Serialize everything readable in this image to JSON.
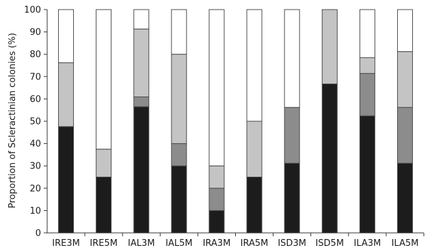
{
  "chart_data": {
    "type": "bar",
    "stacked": true,
    "title": "",
    "xlabel": "",
    "ylabel": "Proportion of Scleractinian colonies (%)",
    "ylim": [
      0,
      100
    ],
    "yticks": [
      0,
      10,
      20,
      30,
      40,
      50,
      60,
      70,
      80,
      90,
      100
    ],
    "grid": false,
    "legend": "none",
    "categories": [
      "IRE3M",
      "IRE5M",
      "IAL3M",
      "IAL5M",
      "IRA3M",
      "IRA5M",
      "ISD3M",
      "ISD5M",
      "ILA3M",
      "ILA5M"
    ],
    "series": [
      {
        "color": "#1c1c1c",
        "values": [
          47.6,
          25.0,
          56.5,
          30.0,
          10.0,
          25.0,
          31.2,
          66.7,
          52.4,
          31.2
        ]
      },
      {
        "color": "#8c8c8c",
        "values": [
          0.0,
          0.0,
          4.4,
          10.0,
          10.0,
          0.0,
          25.0,
          0.0,
          19.0,
          25.0
        ]
      },
      {
        "color": "#c4c4c4",
        "values": [
          28.6,
          12.5,
          30.4,
          40.0,
          10.0,
          25.0,
          0.0,
          33.3,
          7.1,
          25.0
        ]
      },
      {
        "color": "#ffffff",
        "values": [
          23.8,
          62.5,
          8.7,
          20.0,
          70.0,
          50.0,
          43.8,
          0.0,
          21.5,
          18.8
        ]
      }
    ]
  }
}
